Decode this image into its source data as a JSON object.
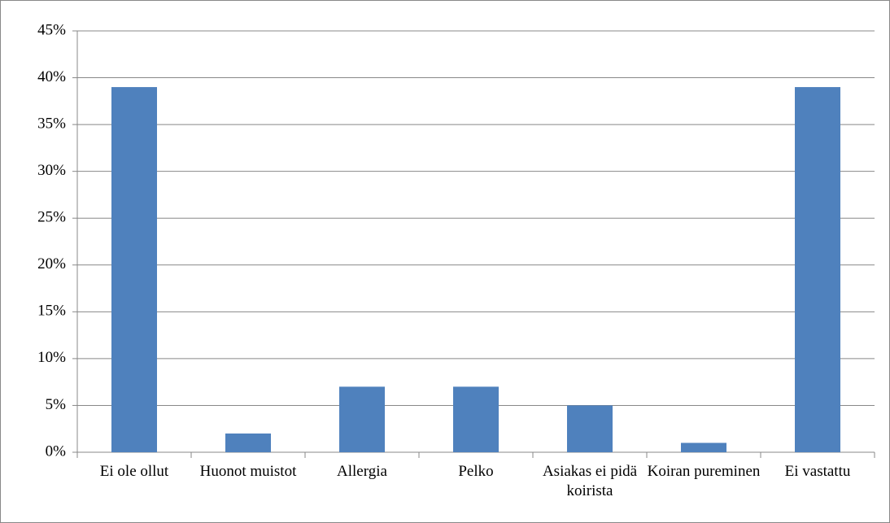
{
  "chart_data": {
    "type": "bar",
    "categories": [
      "Ei ole ollut",
      "Huonot muistot",
      "Allergia",
      "Pelko",
      "Asiakas ei pidä koirista",
      "Koiran pureminen",
      "Ei vastattu"
    ],
    "values": [
      39,
      2,
      7,
      7,
      5,
      1,
      39
    ],
    "color": "#4f81bd",
    "ylim": [
      0,
      45
    ],
    "yticks": [
      {
        "value": 0,
        "label": "0%"
      },
      {
        "value": 5,
        "label": "5%"
      },
      {
        "value": 10,
        "label": "10%"
      },
      {
        "value": 15,
        "label": "15%"
      },
      {
        "value": 20,
        "label": "20%"
      },
      {
        "value": 25,
        "label": "25%"
      },
      {
        "value": 30,
        "label": "30%"
      },
      {
        "value": 35,
        "label": "35%"
      },
      {
        "value": 40,
        "label": "40%"
      },
      {
        "value": 45,
        "label": "45%"
      }
    ],
    "grid": true
  }
}
